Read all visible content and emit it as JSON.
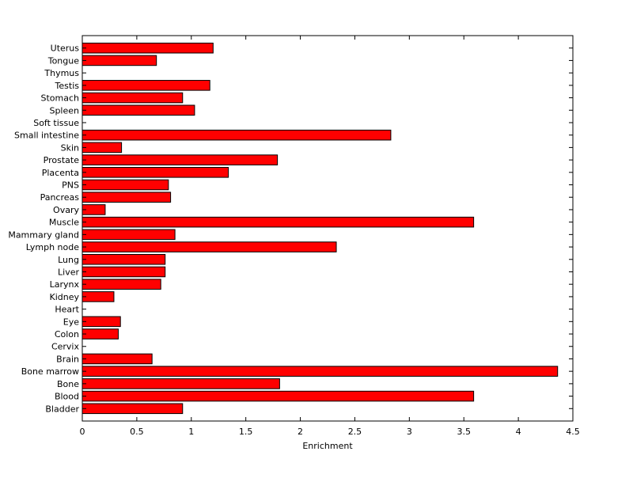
{
  "chart_data": {
    "type": "bar",
    "orientation": "horizontal",
    "xlabel": "Enrichment",
    "ylabel": "",
    "title": "",
    "xlim": [
      0,
      4.5
    ],
    "xticks": [
      "0",
      "0.5",
      "1",
      "1.5",
      "2",
      "2.5",
      "3",
      "3.5",
      "4",
      "4.5"
    ],
    "grid": false,
    "bar_color": "#ff0000",
    "categories": [
      "Uterus",
      "Tongue",
      "Thymus",
      "Testis",
      "Stomach",
      "Spleen",
      "Soft tissue",
      "Small intestine",
      "Skin",
      "Prostate",
      "Placenta",
      "PNS",
      "Pancreas",
      "Ovary",
      "Muscle",
      "Mammary gland",
      "Lymph node",
      "Lung",
      "Liver",
      "Larynx",
      "Kidney",
      "Heart",
      "Eye",
      "Colon",
      "Cervix",
      "Brain",
      "Bone marrow",
      "Bone",
      "Blood",
      "Bladder"
    ],
    "values": [
      1.2,
      0.68,
      0,
      1.17,
      0.92,
      1.03,
      0,
      2.83,
      0.36,
      1.79,
      1.34,
      0.79,
      0.81,
      0.21,
      3.59,
      0.85,
      2.33,
      0.76,
      0.76,
      0.72,
      0.29,
      0,
      0.35,
      0.33,
      0,
      0.64,
      4.36,
      1.81,
      3.59,
      0.92
    ]
  }
}
